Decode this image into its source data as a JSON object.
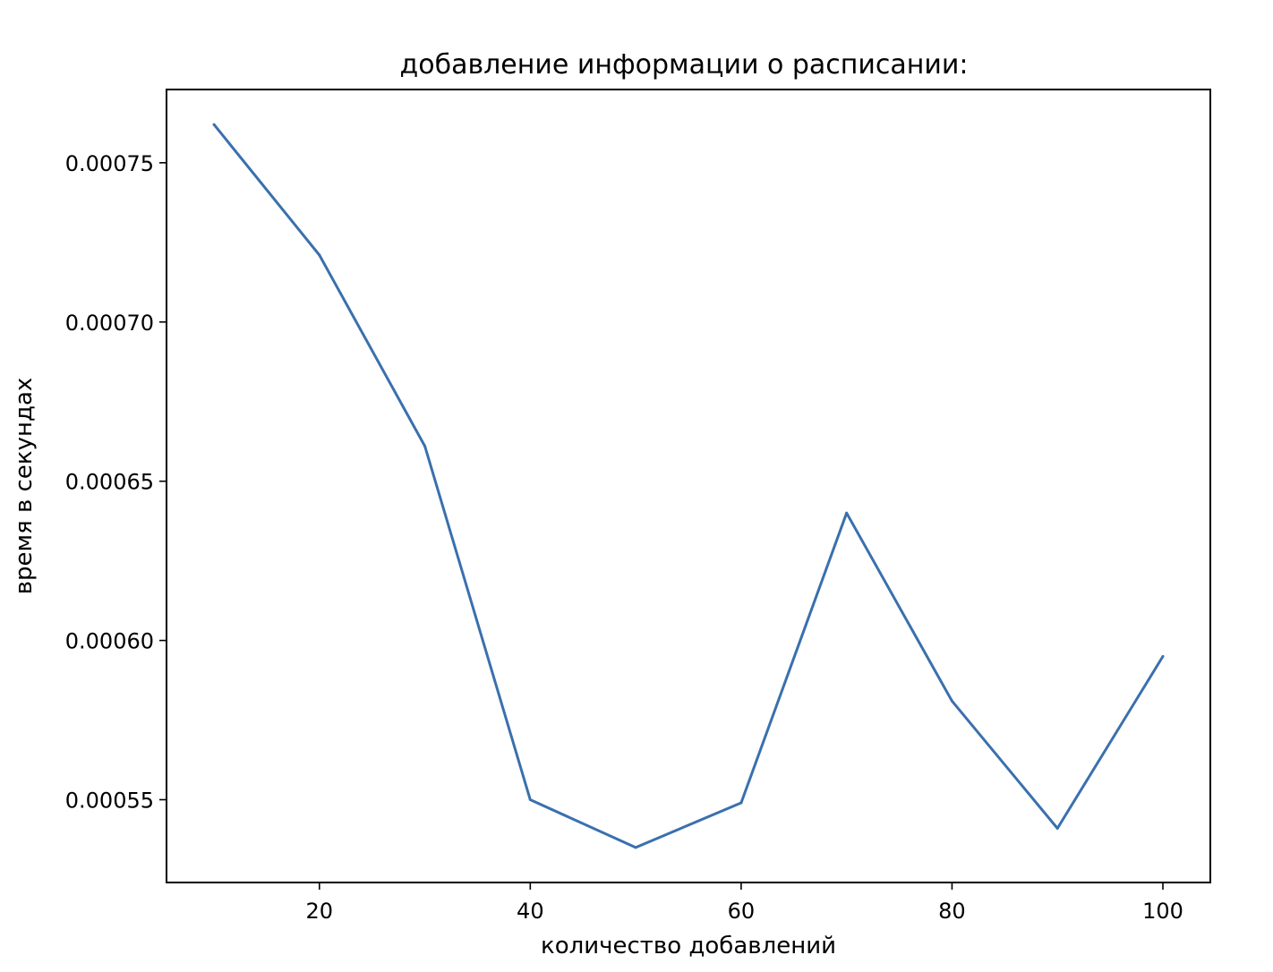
{
  "chart_data": {
    "type": "line",
    "title": "добавление информации о расписании:",
    "xlabel": "количество добавлений",
    "ylabel": "время в секундах",
    "x": [
      10,
      20,
      30,
      40,
      50,
      60,
      70,
      80,
      90,
      100
    ],
    "series": [
      {
        "values": [
          0.000762,
          0.000721,
          0.000661,
          0.00055,
          0.000535,
          0.000549,
          0.00064,
          0.000581,
          0.000541,
          0.000595
        ],
        "color": "#3a70ad"
      }
    ],
    "xlim": [
      5.5,
      104.5
    ],
    "ylim": [
      0.000524,
      0.000773
    ],
    "xticks": [
      20,
      40,
      60,
      80,
      100
    ],
    "xtick_labels": [
      "20",
      "40",
      "60",
      "80",
      "100"
    ],
    "yticks": [
      0.00055,
      0.0006,
      0.00065,
      0.0007,
      0.00075
    ],
    "ytick_labels": [
      "0.00055",
      "0.00060",
      "0.00065",
      "0.00070",
      "0.00075"
    ],
    "grid": false,
    "legend": "none"
  }
}
